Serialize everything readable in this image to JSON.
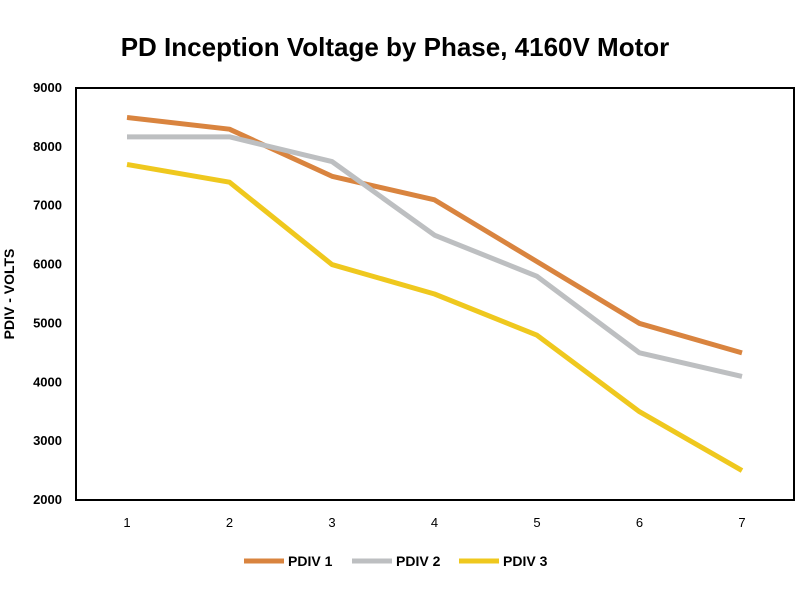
{
  "chart_data": {
    "type": "line",
    "title": "PD Inception Voltage by Phase, 4160V Motor",
    "xlabel": "",
    "ylabel": "PDIV - VOLTS",
    "x": [
      1,
      2,
      3,
      4,
      5,
      6,
      7
    ],
    "ylim": [
      2000,
      9000
    ],
    "yticks": [
      2000,
      3000,
      4000,
      5000,
      6000,
      7000,
      8000,
      9000
    ],
    "grid": false,
    "legend_position": "bottom",
    "series": [
      {
        "name": "PDIV 1",
        "color": "#D9843F",
        "values": [
          8500,
          8300,
          7500,
          7100,
          6050,
          5000,
          4500
        ]
      },
      {
        "name": "PDIV 2",
        "color": "#BDBFC1",
        "values": [
          8170,
          8170,
          7750,
          6500,
          5800,
          4500,
          4100
        ]
      },
      {
        "name": "PDIV 3",
        "color": "#EFC81E",
        "values": [
          7700,
          7400,
          6000,
          5500,
          4800,
          3500,
          2500
        ]
      }
    ]
  }
}
